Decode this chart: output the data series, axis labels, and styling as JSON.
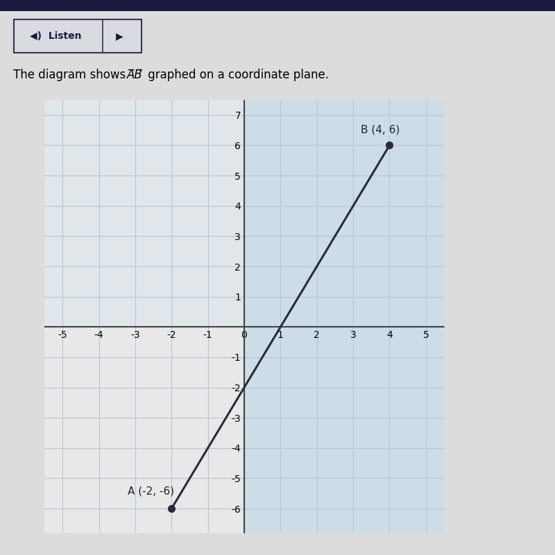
{
  "point_A": [
    -2,
    -6
  ],
  "point_B": [
    4,
    6
  ],
  "label_A": "A (-2, -6)",
  "label_B": "B (4, 6)",
  "xlim": [
    -5.5,
    5.5
  ],
  "ylim": [
    -6.8,
    7.5
  ],
  "xticks": [
    -5,
    -4,
    -3,
    -2,
    -1,
    0,
    1,
    2,
    3,
    4,
    5
  ],
  "yticks": [
    -6,
    -5,
    -4,
    -3,
    -2,
    -1,
    1,
    2,
    3,
    4,
    5,
    6,
    7
  ],
  "line_color": "#2a2a3a",
  "point_color": "#2a2a3a",
  "grid_color": "#b0c8d8",
  "bg_color_left": "#e8e8e8",
  "bg_color_right": "#ccdde8",
  "axes_color": "#444444",
  "page_bg": "#dcdcdc",
  "title_fontsize": 12,
  "tick_fontsize": 10,
  "label_fontsize": 11
}
